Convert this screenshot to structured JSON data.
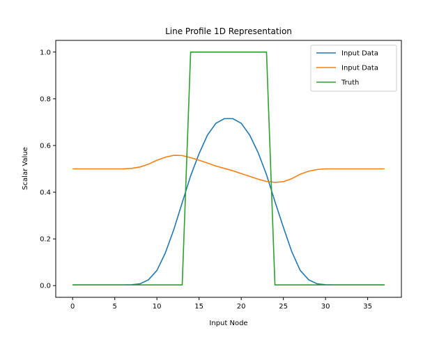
{
  "chart_data": {
    "type": "line",
    "title": "Line Profile 1D Representation",
    "xlabel": "Input Node",
    "ylabel": "Scalar Value",
    "xlim": [
      -2,
      39
    ],
    "ylim": [
      -0.05,
      1.05
    ],
    "xticks": [
      0,
      5,
      10,
      15,
      20,
      25,
      30,
      35
    ],
    "yticks": [
      0.0,
      0.2,
      0.4,
      0.6,
      0.8,
      1.0
    ],
    "xtick_labels": [
      "0",
      "5",
      "10",
      "15",
      "20",
      "25",
      "30",
      "35"
    ],
    "ytick_labels": [
      "0.0",
      "0.2",
      "0.4",
      "0.6",
      "0.8",
      "1.0"
    ],
    "grid": false,
    "legend_position": "top-right",
    "x": [
      0,
      1,
      2,
      3,
      4,
      5,
      6,
      7,
      8,
      9,
      10,
      11,
      12,
      13,
      14,
      15,
      16,
      17,
      18,
      19,
      20,
      21,
      22,
      23,
      24,
      25,
      26,
      27,
      28,
      29,
      30,
      31,
      32,
      33,
      34,
      35,
      36,
      37
    ],
    "series": [
      {
        "name": "Input Data",
        "color": "#1f77b4",
        "values": [
          0.003,
          0.003,
          0.003,
          0.003,
          0.003,
          0.003,
          0.003,
          0.004,
          0.008,
          0.025,
          0.065,
          0.14,
          0.24,
          0.355,
          0.47,
          0.565,
          0.645,
          0.695,
          0.715,
          0.715,
          0.695,
          0.645,
          0.57,
          0.475,
          0.36,
          0.25,
          0.145,
          0.065,
          0.025,
          0.008,
          0.004,
          0.003,
          0.003,
          0.003,
          0.003,
          0.003,
          0.003,
          0.003
        ]
      },
      {
        "name": "Input Data",
        "color": "#ff7f0e",
        "values": [
          0.5,
          0.5,
          0.5,
          0.5,
          0.5,
          0.5,
          0.5,
          0.502,
          0.508,
          0.52,
          0.537,
          0.55,
          0.558,
          0.557,
          0.548,
          0.537,
          0.525,
          0.512,
          0.502,
          0.492,
          0.48,
          0.468,
          0.456,
          0.446,
          0.442,
          0.445,
          0.458,
          0.477,
          0.49,
          0.497,
          0.5,
          0.5,
          0.5,
          0.5,
          0.5,
          0.5,
          0.5,
          0.5
        ]
      },
      {
        "name": "Truth",
        "color": "#2ca02c",
        "values": [
          0.003,
          0.003,
          0.003,
          0.003,
          0.003,
          0.003,
          0.003,
          0.003,
          0.003,
          0.003,
          0.003,
          0.003,
          0.003,
          0.003,
          1.0,
          1.0,
          1.0,
          1.0,
          1.0,
          1.0,
          1.0,
          1.0,
          1.0,
          1.0,
          0.003,
          0.003,
          0.003,
          0.003,
          0.003,
          0.003,
          0.003,
          0.003,
          0.003,
          0.003,
          0.003,
          0.003,
          0.003,
          0.003
        ]
      }
    ]
  }
}
